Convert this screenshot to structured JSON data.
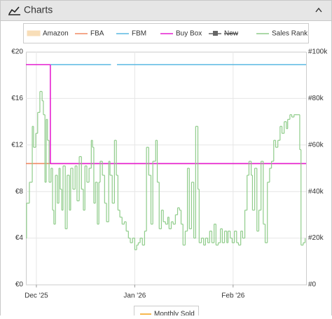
{
  "header": {
    "title": "Charts"
  },
  "chart_data": {
    "type": "step",
    "xlim": [
      -3.3,
      85
    ],
    "xticks": [
      {
        "value": 0,
        "label": "Dec '25"
      },
      {
        "value": 31,
        "label": "Jan '26"
      },
      {
        "value": 62,
        "label": "Feb '26"
      }
    ],
    "ylim": [
      0,
      20
    ],
    "yticks": [
      {
        "value": 0,
        "label": "€0"
      },
      {
        "value": 4,
        "label": "€4"
      },
      {
        "value": 8,
        "label": "€8"
      },
      {
        "value": 12,
        "label": "€12"
      },
      {
        "value": 16,
        "label": "€16"
      },
      {
        "value": 20,
        "label": "€20"
      }
    ],
    "y2lim": [
      0,
      100000
    ],
    "y2ticks": [
      {
        "value": 0,
        "label": "#0"
      },
      {
        "value": 20000,
        "label": "#20k"
      },
      {
        "value": 40000,
        "label": "#40k"
      },
      {
        "value": 60000,
        "label": "#60k"
      },
      {
        "value": 80000,
        "label": "#80k"
      },
      {
        "value": 100000,
        "label": "#100k"
      }
    ],
    "grid": true,
    "series": [
      {
        "name": "Amazon",
        "color": "#f5c98a",
        "legend_icon": "area",
        "x": [],
        "values": []
      },
      {
        "name": "FBA",
        "color": "#f08a64",
        "x": [
          -3.3,
          85
        ],
        "values": [
          10.4,
          10.4
        ]
      },
      {
        "name": "FBM",
        "color": "#5ab8e2",
        "x": [
          -3.3,
          23.5,
          25.4,
          85
        ],
        "values": [
          18.9,
          null,
          18.9,
          18.9
        ]
      },
      {
        "name": "Buy Box",
        "color": "#e51fd0",
        "x": [
          -3.3,
          4.4,
          85
        ],
        "values": [
          18.9,
          10.4,
          10.4
        ]
      },
      {
        "name": "New",
        "color": "#666666",
        "hidden": true,
        "x": [],
        "values": []
      },
      {
        "name": "Sales Rank",
        "color": "#8fcc8a",
        "axis": "y2",
        "x": [
          -3.3,
          -3.1,
          -2.2,
          -1.3,
          -0.9,
          -0.2,
          0.4,
          1.1,
          1.8,
          2.2,
          2.7,
          3.1,
          3.5,
          4.0,
          4.6,
          5.1,
          5.5,
          6.0,
          6.6,
          7.1,
          7.5,
          8.0,
          8.4,
          9.1,
          9.7,
          10.4,
          10.8,
          11.5,
          12.2,
          12.8,
          13.5,
          14.2,
          14.8,
          15.3,
          15.9,
          16.6,
          17.3,
          17.7,
          18.1,
          18.6,
          19.2,
          19.7,
          20.1,
          20.8,
          21.5,
          22.1,
          22.8,
          23.2,
          23.9,
          24.6,
          25.2,
          25.7,
          26.3,
          27.0,
          27.7,
          28.3,
          29.0,
          29.6,
          30.3,
          31.0,
          31.6,
          32.1,
          32.7,
          33.4,
          34.1,
          34.7,
          35.4,
          36.1,
          36.7,
          37.6,
          38.1,
          38.7,
          39.4,
          40.0,
          40.7,
          41.4,
          41.8,
          42.5,
          43.1,
          43.8,
          44.5,
          45.1,
          45.6,
          46.2,
          46.9,
          47.6,
          48.2,
          48.9,
          49.6,
          50.2,
          50.9,
          51.3,
          52.0,
          52.7,
          53.3,
          54.0,
          54.6,
          55.3,
          56.0,
          56.6,
          57.3,
          58.0,
          58.6,
          59.3,
          60.0,
          60.4,
          61.1,
          61.7,
          62.4,
          63.1,
          63.7,
          64.4,
          65.0,
          65.7,
          66.4,
          67.0,
          67.7,
          68.1,
          68.8,
          69.5,
          70.1,
          70.8,
          71.5,
          72.1,
          72.8,
          73.5,
          74.1,
          74.8,
          75.4,
          76.1,
          76.8,
          77.4,
          78.1,
          78.8,
          79.2,
          79.9,
          80.5,
          81.2,
          81.9,
          82.5,
          83.0,
          83.4,
          84.1,
          84.7
        ],
        "values": [
          20000,
          35000,
          44000,
          68000,
          59000,
          65000,
          74000,
          83000,
          79000,
          73000,
          44000,
          71000,
          62000,
          44000,
          50000,
          32000,
          26000,
          47000,
          35000,
          50000,
          41000,
          32000,
          51000,
          24000,
          47000,
          32000,
          50000,
          41000,
          51000,
          36000,
          55000,
          41000,
          32000,
          51000,
          44000,
          50000,
          62000,
          59000,
          35000,
          44000,
          26000,
          44000,
          53000,
          47000,
          35000,
          27000,
          53000,
          47000,
          35000,
          62000,
          47000,
          32000,
          29000,
          26000,
          27000,
          23000,
          20000,
          18000,
          20000,
          15000,
          17000,
          18000,
          20000,
          17000,
          23000,
          59000,
          47000,
          26000,
          53000,
          62000,
          44000,
          24000,
          32000,
          27000,
          26000,
          29000,
          24000,
          27000,
          26000,
          30000,
          33000,
          32000,
          26000,
          17000,
          23000,
          50000,
          24000,
          44000,
          20000,
          68000,
          41000,
          18000,
          20000,
          17000,
          20000,
          18000,
          23000,
          18000,
          26000,
          17000,
          18000,
          24000,
          18000,
          23000,
          18000,
          23000,
          20000,
          18000,
          23000,
          18000,
          17000,
          23000,
          20000,
          32000,
          47000,
          53000,
          47000,
          32000,
          50000,
          23000,
          32000,
          53000,
          26000,
          18000,
          44000,
          50000,
          53000,
          62000,
          59000,
          62000,
          68000,
          65000,
          70000,
          67000,
          71000,
          73000,
          72000,
          73000,
          73000,
          73000,
          58000,
          17000,
          18000,
          20000
        ]
      }
    ]
  },
  "monthly_chart": {
    "series": [
      {
        "name": "Monthly Sold",
        "color": "#f5a623"
      }
    ]
  }
}
